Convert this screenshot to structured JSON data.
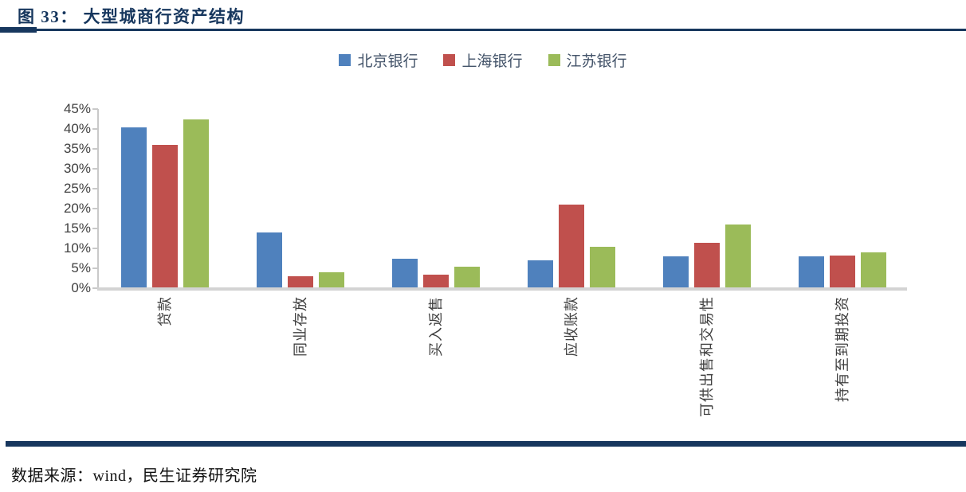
{
  "figure": {
    "title": "图 33： 大型城商行资产结构",
    "source": "数据来源：wind，民生证券研究院"
  },
  "chart_data": {
    "type": "bar",
    "title": "大型城商行资产结构",
    "categories": [
      "贷款",
      "同业存放",
      "买入返售",
      "应收账款",
      "可供出售和交易性",
      "持有至到期投资"
    ],
    "series": [
      {
        "name": "北京银行",
        "color": "#4F81BD",
        "values": [
          40.5,
          14,
          7.5,
          7,
          8,
          8
        ]
      },
      {
        "name": "上海银行",
        "color": "#C0504D",
        "values": [
          36,
          3,
          3.5,
          21,
          11.5,
          8.3
        ]
      },
      {
        "name": "江苏银行",
        "color": "#9BBB59",
        "values": [
          42.5,
          4,
          5.5,
          10.5,
          16,
          9
        ]
      }
    ],
    "xlabel": "",
    "ylabel": "",
    "ylim": [
      0,
      45
    ],
    "ytick_step": 5,
    "ytick_format": "percent",
    "legend_position": "top-center",
    "grid": false,
    "x_label_rotation_deg": -90
  },
  "colors": {
    "accent_navy": "#17375E",
    "axis_line": "#C9C9C9",
    "baseline": "#D3D3D3",
    "tick_text": "#404040",
    "legend_text": "#44546A"
  }
}
